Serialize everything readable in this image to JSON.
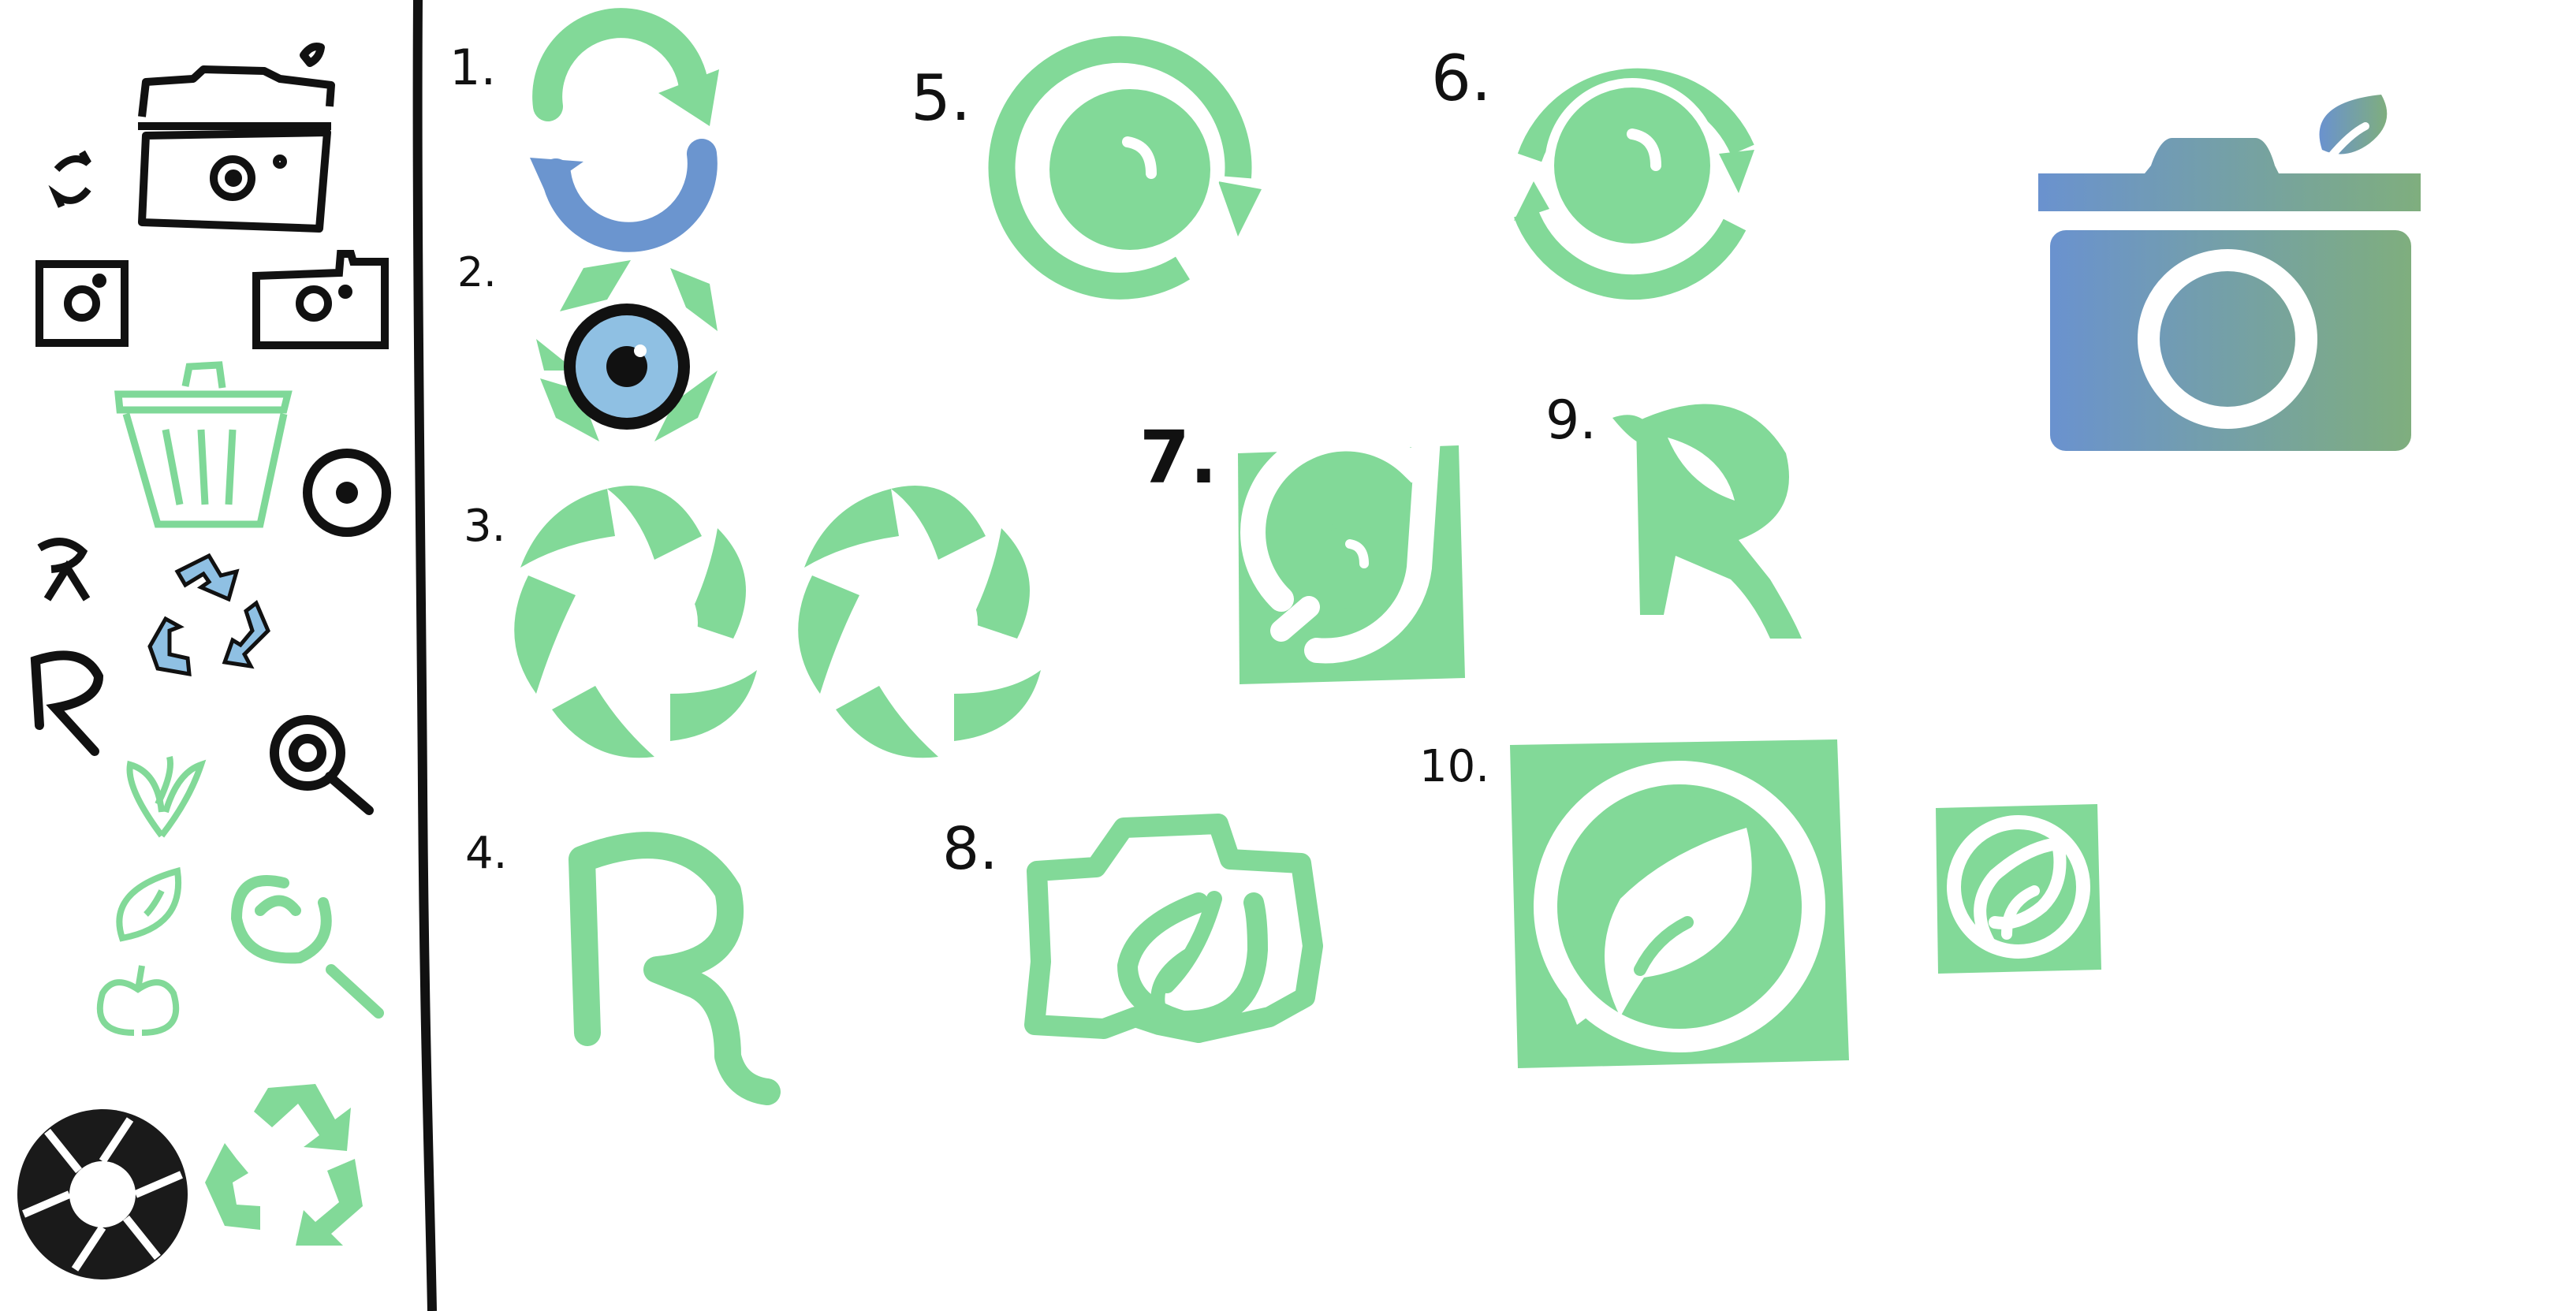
{
  "colors": {
    "ink": "#111111",
    "green": "#82d998",
    "blue": "#6b95cf",
    "light_blue": "#8fc0e3",
    "gradient_start": "#6a92cf",
    "gradient_end": "#7fae7e",
    "white": "#ffffff"
  },
  "concepts": [
    {
      "id": "1",
      "label": "1.",
      "icon": "refresh-arrows-icon"
    },
    {
      "id": "2",
      "label": "2.",
      "icon": "eye-recycle-icon"
    },
    {
      "id": "3",
      "label": "3.",
      "icon": "leaf-aperture-icon"
    },
    {
      "id": "4",
      "label": "4.",
      "icon": "r-letter-icon"
    },
    {
      "id": "5",
      "label": "5.",
      "icon": "lens-arrow-icon"
    },
    {
      "id": "6",
      "label": "6.",
      "icon": "lens-cycle-icon"
    },
    {
      "id": "7",
      "label": "7.",
      "icon": "lens-square-icon"
    },
    {
      "id": "8",
      "label": "8.",
      "icon": "camera-leaf-icon"
    },
    {
      "id": "9",
      "label": "9.",
      "icon": "r-leaf-icon"
    },
    {
      "id": "10",
      "label": "10.",
      "icon": "leaf-lens-square-icon"
    }
  ],
  "final_logo": {
    "icon": "camera-leaf-gradient-icon"
  },
  "sketches": [
    "camera-sketch-icon",
    "cycle-arrows-icon",
    "trash-bin-icon",
    "eye-icon",
    "r-arrow-icon",
    "recycle-arrows-icon",
    "r-letter-sketch-icon",
    "magnifier-icon",
    "sprout-icon",
    "leaf-icon",
    "apple-icon",
    "magnifier-green-icon",
    "aperture-black-icon",
    "recycle-green-icon"
  ]
}
